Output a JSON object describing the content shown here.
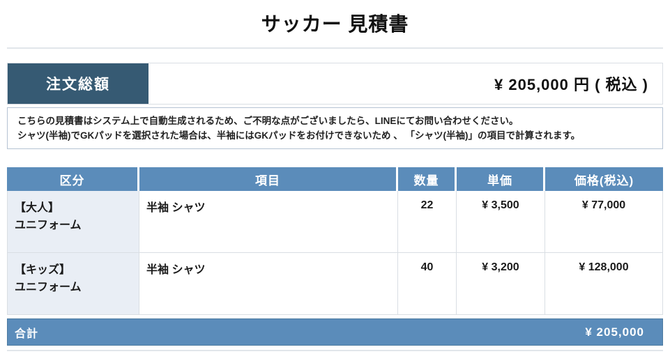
{
  "title": "サッカー 見積書",
  "order_total": {
    "label": "注文総額",
    "amount": "¥ 205,000 円 ( 税込 )"
  },
  "notice": {
    "line1": "こちらの見積書はシステム上で自動生成されるため、ご不明な点がございましたら、LINEにてお問い合わせください。",
    "line2": "シャツ(半袖)でGKパッドを選択された場合は、半袖にはGKパッドをお付けできないため 、 「シャツ(半袖)」の項目で計算されます。"
  },
  "table": {
    "headers": [
      "区分",
      "項目",
      "数量",
      "単価",
      "価格(税込)"
    ],
    "rows": [
      {
        "category": "【大人】\nユニフォーム",
        "item": "半袖 シャツ",
        "quantity": "22",
        "unit_price": "¥ 3,500",
        "price": "¥ 77,000"
      },
      {
        "category": "【キッズ】\nユニフォーム",
        "item": "半袖 シャツ",
        "quantity": "40",
        "unit_price": "¥ 3,200",
        "price": "¥ 128,000"
      }
    ],
    "total": {
      "label": "合計",
      "amount": "¥ 205,000"
    }
  },
  "colors": {
    "navy_label": "#365a73",
    "steel_blue_header": "#5b8cba",
    "light_blue_cell": "#e9eef5",
    "border_gray": "#d9dee3",
    "note_border": "#b5c3d3"
  }
}
